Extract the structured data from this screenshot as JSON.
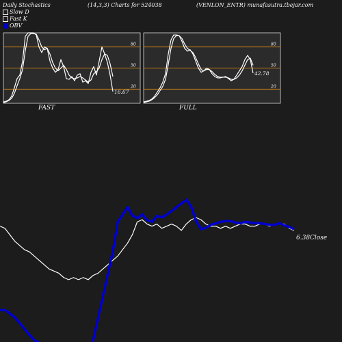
{
  "header": {
    "title": "Daily Stochastics",
    "params": "(14,3,3) Charts for 524038",
    "symbol": "(VENLON_ENTR) munafasutra.tbejar.com"
  },
  "legend": [
    {
      "label": "Slow  D",
      "swatch": "open"
    },
    {
      "label": "Fast K",
      "swatch": "filled"
    },
    {
      "label": "OBV",
      "swatch": "blue"
    }
  ],
  "colors": {
    "background": "#1c1c1c",
    "panel": "#2b2b2b",
    "grid": "#c87f1a",
    "line": "#ffffff",
    "obv": "#0000cc"
  },
  "chart_data": [
    {
      "type": "line",
      "panel": "stoch-fast",
      "label": "FAST",
      "ylim": [
        0,
        100
      ],
      "levels": [
        20,
        50,
        80
      ],
      "last_value_label": "16.67",
      "series": [
        {
          "name": "Fast K",
          "values": [
            2,
            3,
            5,
            10,
            22,
            35,
            40,
            60,
            95,
            100,
            100,
            100,
            97,
            80,
            72,
            80,
            78,
            60,
            50,
            44,
            48,
            62,
            52,
            35,
            34,
            38,
            32,
            40,
            42,
            30,
            32,
            28,
            44,
            52,
            40,
            60,
            80,
            70,
            58,
            40,
            16.67
          ]
        },
        {
          "name": "Slow  D",
          "values": [
            1,
            2,
            4,
            7,
            14,
            25,
            35,
            48,
            75,
            95,
            99,
            99,
            98,
            90,
            80,
            76,
            78,
            70,
            58,
            50,
            46,
            50,
            54,
            48,
            40,
            36,
            35,
            36,
            38,
            36,
            33,
            30,
            33,
            42,
            45,
            50,
            62,
            70,
            68,
            56,
            38
          ]
        }
      ]
    },
    {
      "type": "line",
      "panel": "stoch-full",
      "label": "FULL",
      "ylim": [
        0,
        100
      ],
      "levels": [
        20,
        50,
        80
      ],
      "last_value_label": "42.78",
      "series": [
        {
          "name": "Full K",
          "values": [
            2,
            3,
            4,
            6,
            10,
            16,
            22,
            30,
            42,
            70,
            90,
            97,
            97,
            96,
            88,
            78,
            74,
            76,
            70,
            60,
            50,
            44,
            46,
            50,
            48,
            42,
            38,
            36,
            36,
            37,
            38,
            35,
            32,
            34,
            40,
            46,
            52,
            62,
            68,
            62,
            42.78
          ]
        },
        {
          "name": "Full D",
          "values": [
            1,
            2,
            3,
            5,
            8,
            12,
            18,
            24,
            34,
            55,
            78,
            92,
            96,
            96,
            92,
            84,
            78,
            75,
            72,
            65,
            56,
            48,
            46,
            48,
            48,
            45,
            41,
            38,
            37,
            37,
            37,
            36,
            34,
            34,
            36,
            40,
            46,
            54,
            62,
            64,
            54
          ]
        }
      ]
    },
    {
      "type": "line",
      "panel": "obv-close",
      "close_label": "6.38Close",
      "series": [
        {
          "name": "Close",
          "values": [
            96,
            95,
            92,
            89,
            87,
            85,
            84,
            82,
            80,
            78,
            76,
            75,
            74,
            72,
            71,
            72,
            71,
            72,
            71,
            73,
            74,
            76,
            78,
            80,
            82,
            85,
            88,
            92,
            98,
            99,
            97,
            96,
            97,
            95,
            96,
            97,
            96,
            94,
            97,
            99,
            100,
            99,
            97,
            96,
            96,
            95,
            96,
            95,
            96,
            97,
            97,
            96,
            96,
            97,
            97,
            96,
            97,
            97,
            97,
            95,
            94
          ]
        },
        {
          "name": "OBV",
          "values": [
            0,
            0,
            -5,
            -10,
            -18,
            -26,
            -34,
            -41,
            -45,
            -48,
            -50,
            -52,
            -54,
            -56,
            -58,
            -60,
            -60,
            -62,
            -60,
            -40,
            -10,
            20,
            50,
            80,
            120,
            130,
            140,
            128,
            125,
            130,
            122,
            120,
            128,
            126,
            130,
            135,
            140,
            145,
            150,
            140,
            120,
            110,
            112,
            116,
            118,
            120,
            121,
            121,
            119,
            118,
            120,
            119,
            118,
            118,
            117,
            116,
            116,
            118,
            115,
            113,
            110
          ]
        }
      ]
    }
  ]
}
